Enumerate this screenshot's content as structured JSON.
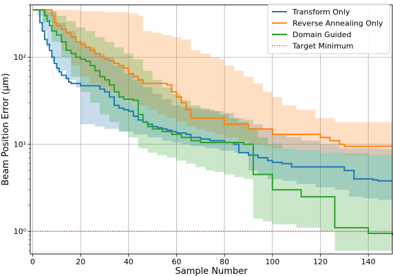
{
  "chart_data": {
    "type": "line",
    "xlabel": "Sample Number",
    "ylabel": "Beam Position Error (μm)",
    "xlim": [
      -1,
      150
    ],
    "ylim": [
      0.55,
      400
    ],
    "yscale": "log",
    "grid": true,
    "legend_position": "top-right",
    "x_ticks": [
      0,
      20,
      40,
      60,
      80,
      100,
      120,
      140
    ],
    "x_tick_labels": [
      "0",
      "20",
      "40",
      "60",
      "80",
      "100",
      "120",
      "140"
    ],
    "y_ticks": [
      1,
      10,
      100
    ],
    "y_tick_labels": [
      "10⁰",
      "10¹",
      "10²"
    ],
    "series": [
      {
        "name": "Transform Only",
        "color": "#1f77b4",
        "band_color": "#1f77b4",
        "mean": [
          [
            0,
            350
          ],
          [
            1,
            350
          ],
          [
            3,
            250
          ],
          [
            4,
            200
          ],
          [
            5,
            160
          ],
          [
            6,
            140
          ],
          [
            7,
            120
          ],
          [
            8,
            100
          ],
          [
            9,
            85
          ],
          [
            10,
            75
          ],
          [
            11,
            68
          ],
          [
            12,
            62
          ],
          [
            14,
            57
          ],
          [
            15,
            52
          ],
          [
            16,
            50
          ],
          [
            20,
            47
          ],
          [
            28,
            43
          ],
          [
            30,
            40
          ],
          [
            32,
            35
          ],
          [
            34,
            28
          ],
          [
            36,
            26
          ],
          [
            38,
            25
          ],
          [
            40,
            24
          ],
          [
            42,
            21
          ],
          [
            44,
            19
          ],
          [
            46,
            18
          ],
          [
            48,
            17
          ],
          [
            50,
            16
          ],
          [
            52,
            15.5
          ],
          [
            54,
            15
          ],
          [
            56,
            14.5
          ],
          [
            58,
            14
          ],
          [
            60,
            13.5
          ],
          [
            64,
            13
          ],
          [
            66,
            12
          ],
          [
            70,
            11.5
          ],
          [
            74,
            11
          ],
          [
            80,
            10.5
          ],
          [
            84,
            10
          ],
          [
            86,
            8
          ],
          [
            90,
            7.5
          ],
          [
            94,
            7
          ],
          [
            98,
            6.5
          ],
          [
            100,
            6.2
          ],
          [
            104,
            6
          ],
          [
            108,
            5.5
          ],
          [
            130,
            5
          ],
          [
            134,
            4
          ],
          [
            142,
            3.9
          ],
          [
            144,
            3.8
          ],
          [
            150,
            3.8
          ]
        ],
        "upper": [
          [
            0,
            350
          ],
          [
            6,
            330
          ],
          [
            10,
            250
          ],
          [
            14,
            200
          ],
          [
            18,
            150
          ],
          [
            22,
            130
          ],
          [
            26,
            110
          ],
          [
            30,
            100
          ],
          [
            34,
            80
          ],
          [
            38,
            65
          ],
          [
            42,
            55
          ],
          [
            46,
            45
          ],
          [
            50,
            38
          ],
          [
            54,
            33
          ],
          [
            58,
            28
          ],
          [
            62,
            27
          ],
          [
            66,
            26
          ],
          [
            70,
            25
          ],
          [
            76,
            24
          ],
          [
            80,
            23
          ],
          [
            84,
            20
          ],
          [
            88,
            19
          ],
          [
            92,
            17
          ],
          [
            96,
            15
          ],
          [
            100,
            13
          ],
          [
            106,
            12
          ],
          [
            112,
            11
          ],
          [
            120,
            10
          ],
          [
            128,
            9
          ],
          [
            136,
            9
          ],
          [
            144,
            8.8
          ],
          [
            150,
            8.8
          ]
        ],
        "lower": [
          [
            0,
            350
          ],
          [
            2,
            300
          ],
          [
            4,
            200
          ],
          [
            6,
            130
          ],
          [
            8,
            90
          ],
          [
            10,
            70
          ],
          [
            14,
            55
          ],
          [
            18,
            45
          ],
          [
            20,
            17
          ],
          [
            26,
            16
          ],
          [
            30,
            15
          ],
          [
            36,
            14
          ],
          [
            42,
            13
          ],
          [
            48,
            12
          ],
          [
            54,
            11
          ],
          [
            58,
            10.5
          ],
          [
            62,
            10
          ],
          [
            66,
            9.5
          ],
          [
            72,
            9
          ],
          [
            78,
            8.5
          ],
          [
            84,
            8
          ],
          [
            90,
            5
          ],
          [
            94,
            4.5
          ],
          [
            98,
            4
          ],
          [
            104,
            3.8
          ],
          [
            110,
            3.5
          ],
          [
            118,
            3.2
          ],
          [
            126,
            3
          ],
          [
            132,
            2.5
          ],
          [
            138,
            2.4
          ],
          [
            144,
            2.3
          ],
          [
            150,
            2.3
          ]
        ]
      },
      {
        "name": "Reverse Annealing Only",
        "color": "#ff7f0e",
        "band_color": "#ff7f0e",
        "mean": [
          [
            0,
            350
          ],
          [
            7,
            350
          ],
          [
            8,
            300
          ],
          [
            9,
            250
          ],
          [
            10,
            230
          ],
          [
            12,
            210
          ],
          [
            14,
            190
          ],
          [
            16,
            170
          ],
          [
            18,
            150
          ],
          [
            20,
            140
          ],
          [
            22,
            130
          ],
          [
            24,
            120
          ],
          [
            26,
            110
          ],
          [
            28,
            100
          ],
          [
            30,
            95
          ],
          [
            32,
            90
          ],
          [
            34,
            85
          ],
          [
            36,
            80
          ],
          [
            38,
            75
          ],
          [
            40,
            65
          ],
          [
            42,
            60
          ],
          [
            44,
            55
          ],
          [
            46,
            50
          ],
          [
            56,
            48
          ],
          [
            58,
            40
          ],
          [
            60,
            35
          ],
          [
            62,
            30
          ],
          [
            64,
            25
          ],
          [
            66,
            20
          ],
          [
            80,
            17
          ],
          [
            90,
            15
          ],
          [
            100,
            13
          ],
          [
            120,
            12
          ],
          [
            124,
            11
          ],
          [
            128,
            10
          ],
          [
            130,
            9.5
          ],
          [
            150,
            9.5
          ]
        ],
        "upper": [
          [
            0,
            350
          ],
          [
            10,
            350
          ],
          [
            20,
            340
          ],
          [
            30,
            330
          ],
          [
            40,
            320
          ],
          [
            44,
            300
          ],
          [
            46,
            200
          ],
          [
            50,
            190
          ],
          [
            54,
            180
          ],
          [
            58,
            170
          ],
          [
            62,
            160
          ],
          [
            66,
            120
          ],
          [
            70,
            110
          ],
          [
            74,
            100
          ],
          [
            78,
            95
          ],
          [
            80,
            80
          ],
          [
            84,
            70
          ],
          [
            88,
            60
          ],
          [
            92,
            50
          ],
          [
            96,
            40
          ],
          [
            100,
            35
          ],
          [
            104,
            28
          ],
          [
            110,
            25
          ],
          [
            118,
            20
          ],
          [
            126,
            18
          ],
          [
            150,
            18
          ]
        ],
        "lower": [
          [
            0,
            350
          ],
          [
            4,
            300
          ],
          [
            8,
            200
          ],
          [
            12,
            120
          ],
          [
            16,
            80
          ],
          [
            20,
            60
          ],
          [
            24,
            50
          ],
          [
            28,
            45
          ],
          [
            32,
            40
          ],
          [
            36,
            35
          ],
          [
            40,
            32
          ],
          [
            44,
            28
          ],
          [
            48,
            25
          ],
          [
            52,
            22
          ],
          [
            56,
            20
          ],
          [
            60,
            18
          ],
          [
            64,
            16
          ],
          [
            68,
            15
          ],
          [
            72,
            14
          ],
          [
            76,
            13
          ],
          [
            80,
            12
          ],
          [
            86,
            11
          ],
          [
            90,
            10
          ],
          [
            96,
            9.5
          ],
          [
            100,
            9
          ],
          [
            110,
            8.5
          ],
          [
            120,
            8
          ],
          [
            130,
            7.5
          ],
          [
            150,
            7.5
          ]
        ]
      },
      {
        "name": "Domain Guided",
        "color": "#2ca02c",
        "band_color": "#2ca02c",
        "mean": [
          [
            0,
            350
          ],
          [
            4,
            350
          ],
          [
            5,
            300
          ],
          [
            6,
            260
          ],
          [
            7,
            230
          ],
          [
            8,
            200
          ],
          [
            10,
            180
          ],
          [
            12,
            150
          ],
          [
            14,
            120
          ],
          [
            16,
            110
          ],
          [
            18,
            100
          ],
          [
            20,
            95
          ],
          [
            22,
            90
          ],
          [
            24,
            80
          ],
          [
            26,
            70
          ],
          [
            28,
            60
          ],
          [
            30,
            55
          ],
          [
            32,
            48
          ],
          [
            34,
            40
          ],
          [
            36,
            35
          ],
          [
            38,
            33
          ],
          [
            42,
            32
          ],
          [
            44,
            22
          ],
          [
            46,
            18
          ],
          [
            48,
            16
          ],
          [
            50,
            15
          ],
          [
            54,
            14
          ],
          [
            58,
            13
          ],
          [
            62,
            12
          ],
          [
            66,
            11
          ],
          [
            70,
            10.5
          ],
          [
            88,
            10
          ],
          [
            92,
            4.5
          ],
          [
            98,
            4.5
          ],
          [
            100,
            3
          ],
          [
            110,
            3
          ],
          [
            112,
            2.5
          ],
          [
            124,
            2.5
          ],
          [
            126,
            1.1
          ],
          [
            136,
            1.1
          ],
          [
            140,
            0.95
          ],
          [
            148,
            0.95
          ],
          [
            150,
            0.9
          ]
        ],
        "upper": [
          [
            0,
            350
          ],
          [
            6,
            340
          ],
          [
            10,
            300
          ],
          [
            14,
            260
          ],
          [
            18,
            220
          ],
          [
            22,
            200
          ],
          [
            26,
            170
          ],
          [
            30,
            150
          ],
          [
            34,
            130
          ],
          [
            38,
            110
          ],
          [
            42,
            95
          ],
          [
            46,
            70
          ],
          [
            50,
            55
          ],
          [
            54,
            45
          ],
          [
            58,
            38
          ],
          [
            62,
            32
          ],
          [
            66,
            28
          ],
          [
            70,
            26
          ],
          [
            74,
            24
          ],
          [
            78,
            22
          ],
          [
            82,
            20
          ],
          [
            86,
            18
          ],
          [
            90,
            15
          ],
          [
            94,
            12
          ],
          [
            98,
            10
          ],
          [
            104,
            9
          ],
          [
            110,
            8.5
          ],
          [
            120,
            8
          ],
          [
            130,
            7.8
          ],
          [
            140,
            7.5
          ],
          [
            150,
            7.5
          ]
        ],
        "lower": [
          [
            0,
            350
          ],
          [
            4,
            250
          ],
          [
            8,
            150
          ],
          [
            12,
            100
          ],
          [
            16,
            60
          ],
          [
            20,
            40
          ],
          [
            24,
            30
          ],
          [
            28,
            22
          ],
          [
            32,
            18
          ],
          [
            36,
            14
          ],
          [
            40,
            12
          ],
          [
            44,
            9
          ],
          [
            48,
            8
          ],
          [
            52,
            7.5
          ],
          [
            56,
            7
          ],
          [
            60,
            6.5
          ],
          [
            64,
            6
          ],
          [
            68,
            5.5
          ],
          [
            72,
            5
          ],
          [
            76,
            4.8
          ],
          [
            80,
            4.5
          ],
          [
            84,
            4.2
          ],
          [
            88,
            4
          ],
          [
            92,
            1.4
          ],
          [
            96,
            1.3
          ],
          [
            100,
            1.2
          ],
          [
            110,
            1.1
          ],
          [
            120,
            1
          ],
          [
            126,
            0.6
          ],
          [
            150,
            0.6
          ]
        ]
      },
      {
        "name": "Target Minimum",
        "color": "#d62728",
        "style": "dotted",
        "constant": 1
      }
    ]
  }
}
